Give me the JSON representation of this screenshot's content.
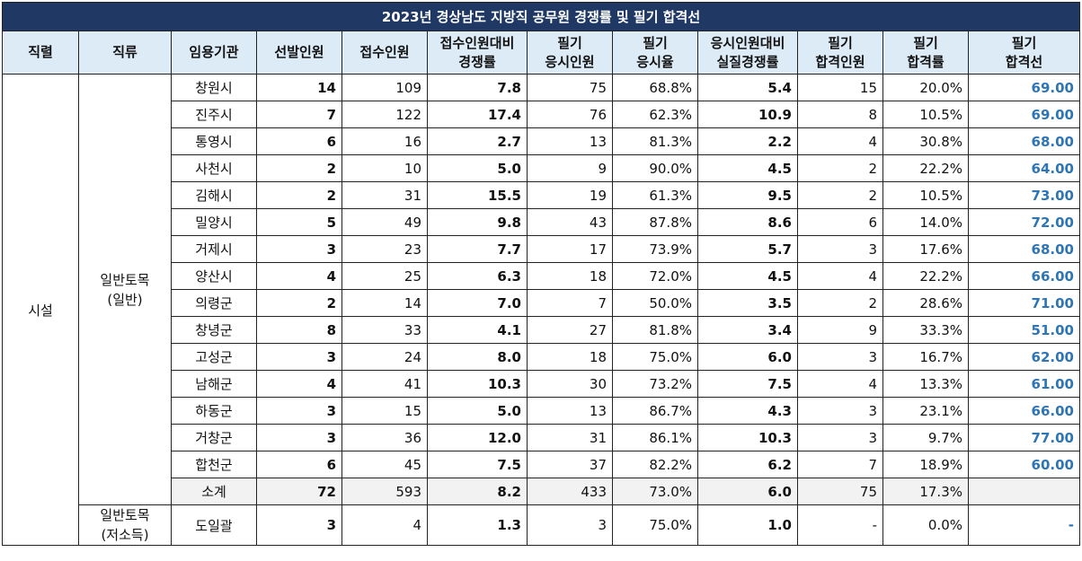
{
  "title": "2023년 경상남도 지방직 공무원 경쟁률 및 필기 합격선",
  "headers": [
    [
      "직렬"
    ],
    [
      "직류"
    ],
    [
      "임용기관"
    ],
    [
      "선발인원"
    ],
    [
      "접수인원"
    ],
    [
      "접수인원대비",
      "경쟁률"
    ],
    [
      "필기",
      "응시인원"
    ],
    [
      "필기",
      "응시율"
    ],
    [
      "응시인원대비",
      "실질경쟁률"
    ],
    [
      "필기",
      "합격인원"
    ],
    [
      "필기",
      "합격률"
    ],
    [
      "필기",
      "합격선"
    ]
  ],
  "series_label": "시설",
  "group1": {
    "line1": "일반토목",
    "line2": "(일반)"
  },
  "group2": {
    "line1": "일반토목",
    "line2": "(저소득)"
  },
  "rows": [
    {
      "org": "창원시",
      "sel": "14",
      "app": "109",
      "rate": "7.8",
      "take": "75",
      "takeRate": "68.8%",
      "real": "5.4",
      "pass": "15",
      "passRate": "20.0%",
      "cut": "69.00"
    },
    {
      "org": "진주시",
      "sel": "7",
      "app": "122",
      "rate": "17.4",
      "take": "76",
      "takeRate": "62.3%",
      "real": "10.9",
      "pass": "8",
      "passRate": "10.5%",
      "cut": "69.00"
    },
    {
      "org": "통영시",
      "sel": "6",
      "app": "16",
      "rate": "2.7",
      "take": "13",
      "takeRate": "81.3%",
      "real": "2.2",
      "pass": "4",
      "passRate": "30.8%",
      "cut": "68.00"
    },
    {
      "org": "사천시",
      "sel": "2",
      "app": "10",
      "rate": "5.0",
      "take": "9",
      "takeRate": "90.0%",
      "real": "4.5",
      "pass": "2",
      "passRate": "22.2%",
      "cut": "64.00"
    },
    {
      "org": "김해시",
      "sel": "2",
      "app": "31",
      "rate": "15.5",
      "take": "19",
      "takeRate": "61.3%",
      "real": "9.5",
      "pass": "2",
      "passRate": "10.5%",
      "cut": "73.00"
    },
    {
      "org": "밀양시",
      "sel": "5",
      "app": "49",
      "rate": "9.8",
      "take": "43",
      "takeRate": "87.8%",
      "real": "8.6",
      "pass": "6",
      "passRate": "14.0%",
      "cut": "72.00"
    },
    {
      "org": "거제시",
      "sel": "3",
      "app": "23",
      "rate": "7.7",
      "take": "17",
      "takeRate": "73.9%",
      "real": "5.7",
      "pass": "3",
      "passRate": "17.6%",
      "cut": "68.00"
    },
    {
      "org": "양산시",
      "sel": "4",
      "app": "25",
      "rate": "6.3",
      "take": "18",
      "takeRate": "72.0%",
      "real": "4.5",
      "pass": "4",
      "passRate": "22.2%",
      "cut": "66.00"
    },
    {
      "org": "의령군",
      "sel": "2",
      "app": "14",
      "rate": "7.0",
      "take": "7",
      "takeRate": "50.0%",
      "real": "3.5",
      "pass": "2",
      "passRate": "28.6%",
      "cut": "71.00"
    },
    {
      "org": "창녕군",
      "sel": "8",
      "app": "33",
      "rate": "4.1",
      "take": "27",
      "takeRate": "81.8%",
      "real": "3.4",
      "pass": "9",
      "passRate": "33.3%",
      "cut": "51.00"
    },
    {
      "org": "고성군",
      "sel": "3",
      "app": "24",
      "rate": "8.0",
      "take": "18",
      "takeRate": "75.0%",
      "real": "6.0",
      "pass": "3",
      "passRate": "16.7%",
      "cut": "62.00"
    },
    {
      "org": "남해군",
      "sel": "4",
      "app": "41",
      "rate": "10.3",
      "take": "30",
      "takeRate": "73.2%",
      "real": "7.5",
      "pass": "4",
      "passRate": "13.3%",
      "cut": "61.00"
    },
    {
      "org": "하동군",
      "sel": "3",
      "app": "15",
      "rate": "5.0",
      "take": "13",
      "takeRate": "86.7%",
      "real": "4.3",
      "pass": "3",
      "passRate": "23.1%",
      "cut": "66.00"
    },
    {
      "org": "거창군",
      "sel": "3",
      "app": "36",
      "rate": "12.0",
      "take": "31",
      "takeRate": "86.1%",
      "real": "10.3",
      "pass": "3",
      "passRate": "9.7%",
      "cut": "77.00"
    },
    {
      "org": "합천군",
      "sel": "6",
      "app": "45",
      "rate": "7.5",
      "take": "37",
      "takeRate": "82.2%",
      "real": "6.2",
      "pass": "7",
      "passRate": "18.9%",
      "cut": "60.00"
    }
  ],
  "subtotal": {
    "org": "소계",
    "sel": "72",
    "app": "593",
    "rate": "8.2",
    "take": "433",
    "takeRate": "73.0%",
    "real": "6.0",
    "pass": "75",
    "passRate": "17.3%",
    "cut": ""
  },
  "lastRow": {
    "org": "도일괄",
    "sel": "3",
    "app": "4",
    "rate": "1.3",
    "take": "3",
    "takeRate": "75.0%",
    "real": "1.0",
    "pass": "-",
    "passRate": "0.0%",
    "cut": "-"
  }
}
